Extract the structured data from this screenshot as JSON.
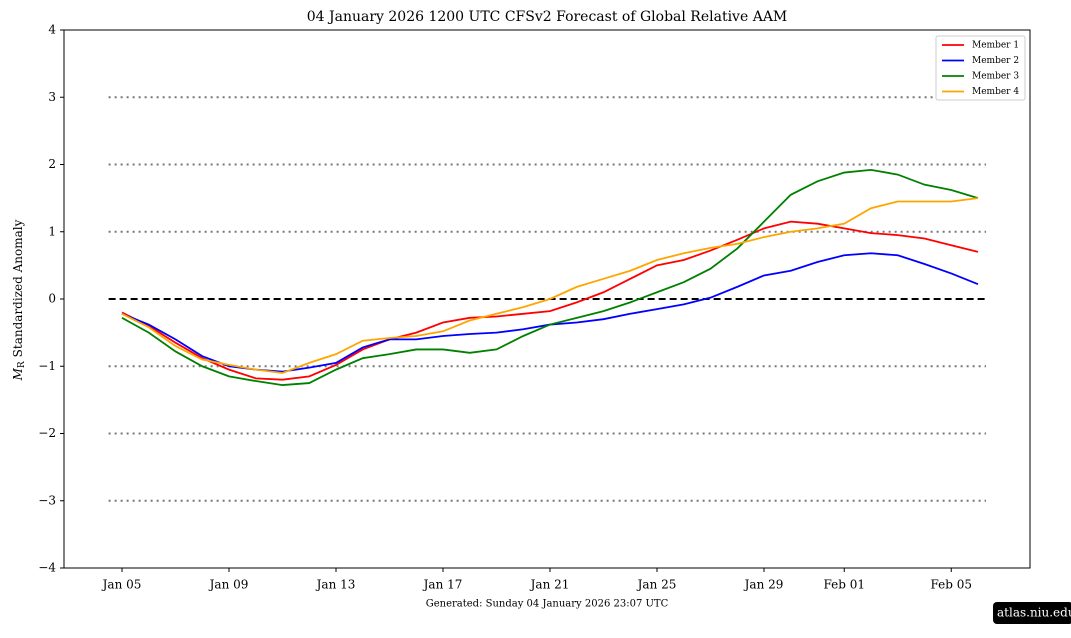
{
  "chart_data": {
    "type": "line",
    "title": "04  January  2026 1200 UTC   CFSv2 Forecast of Global Relative AAM",
    "ylabel_symbol": "M",
    "ylabel_subscript": "R",
    "ylabel": "Standardized Anomaly",
    "footer": "Generated: Sunday  04  January  2026  23:07 UTC",
    "watermark": "atlas.niu.edu",
    "x": [
      "Jan 05",
      "Jan 06",
      "Jan 07",
      "Jan 08",
      "Jan 09",
      "Jan 10",
      "Jan 11",
      "Jan 12",
      "Jan 13",
      "Jan 14",
      "Jan 15",
      "Jan 16",
      "Jan 17",
      "Jan 18",
      "Jan 19",
      "Jan 20",
      "Jan 21",
      "Jan 22",
      "Jan 23",
      "Jan 24",
      "Jan 25",
      "Jan 26",
      "Jan 27",
      "Jan 28",
      "Jan 29",
      "Jan 30",
      "Jan 31",
      "Feb 01",
      "Feb 02",
      "Feb 03",
      "Feb 04",
      "Feb 05",
      "Feb 06"
    ],
    "xticks": [
      "Jan 05",
      "Jan 09",
      "Jan 13",
      "Jan 17",
      "Jan 21",
      "Jan 25",
      "Jan 29",
      "Feb 01",
      "Feb 05"
    ],
    "ylim": [
      -4,
      4
    ],
    "yticks": [
      {
        "value": -4,
        "label": "−4"
      },
      {
        "value": -3,
        "label": "−3"
      },
      {
        "value": -2,
        "label": "−2"
      },
      {
        "value": -1,
        "label": "−1"
      },
      0,
      1,
      2,
      3,
      4
    ],
    "dotted_lines": [
      -3,
      -2,
      -1,
      1,
      2,
      3
    ],
    "dashed_lines": [
      0
    ],
    "legend": "upper right",
    "series": [
      {
        "name": "Member 1",
        "color": "#ff0000",
        "values": [
          -0.2,
          -0.4,
          -0.65,
          -0.88,
          -1.05,
          -1.18,
          -1.2,
          -1.15,
          -0.98,
          -0.75,
          -0.6,
          -0.5,
          -0.35,
          -0.28,
          -0.26,
          -0.22,
          -0.18,
          -0.05,
          0.1,
          0.3,
          0.5,
          0.58,
          0.72,
          0.88,
          1.05,
          1.15,
          1.12,
          1.05,
          0.98,
          0.95,
          0.9,
          0.8,
          0.7
        ]
      },
      {
        "name": "Member 2",
        "color": "#0000ff",
        "values": [
          -0.22,
          -0.38,
          -0.6,
          -0.85,
          -1.0,
          -1.05,
          -1.08,
          -1.02,
          -0.95,
          -0.72,
          -0.6,
          -0.6,
          -0.55,
          -0.52,
          -0.5,
          -0.45,
          -0.38,
          -0.35,
          -0.3,
          -0.22,
          -0.15,
          -0.08,
          0.02,
          0.18,
          0.35,
          0.42,
          0.55,
          0.65,
          0.68,
          0.65,
          0.52,
          0.38,
          0.22
        ]
      },
      {
        "name": "Member 3",
        "color": "#008000",
        "values": [
          -0.28,
          -0.5,
          -0.78,
          -1.0,
          -1.15,
          -1.22,
          -1.28,
          -1.25,
          -1.05,
          -0.88,
          -0.82,
          -0.75,
          -0.75,
          -0.8,
          -0.75,
          -0.55,
          -0.38,
          -0.28,
          -0.18,
          -0.05,
          0.1,
          0.25,
          0.45,
          0.75,
          1.15,
          1.55,
          1.75,
          1.88,
          1.92,
          1.85,
          1.7,
          1.62,
          1.5
        ]
      },
      {
        "name": "Member 4",
        "color": "#ffa500",
        "values": [
          -0.22,
          -0.42,
          -0.7,
          -0.9,
          -0.98,
          -1.05,
          -1.1,
          -0.95,
          -0.82,
          -0.62,
          -0.58,
          -0.55,
          -0.48,
          -0.32,
          -0.22,
          -0.12,
          0.0,
          0.18,
          0.3,
          0.42,
          0.58,
          0.68,
          0.76,
          0.82,
          0.92,
          1.0,
          1.05,
          1.12,
          1.35,
          1.45,
          1.45,
          1.45,
          1.5
        ]
      }
    ]
  }
}
